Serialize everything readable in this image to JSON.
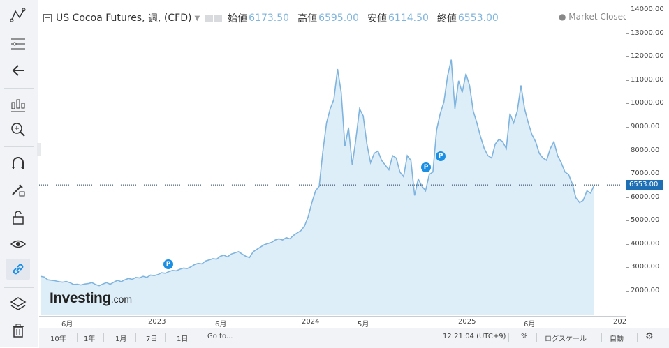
{
  "header": {
    "symbol": "US Cocoa Futures",
    "interval": "週",
    "type": "(CFD)",
    "open_label": "始値",
    "open": "6173.50",
    "high_label": "高値",
    "high": "6595.00",
    "low_label": "安値",
    "low": "6114.50",
    "close_label": "終値",
    "close": "6553.00",
    "market_status": "Market Closed"
  },
  "logo": {
    "brand": "Investing",
    "suffix": ".com"
  },
  "price_tag": "6553.00",
  "y_ticks": [
    "14000.00",
    "13000.00",
    "12000.00",
    "11000.00",
    "10000.00",
    "9000.00",
    "8000.00",
    "7000.00",
    "6000.00",
    "5000.00",
    "4000.00",
    "3000.00",
    "2000.00"
  ],
  "x_ticks": [
    "6月",
    "2023",
    "6月",
    "2024",
    "5月",
    "2025",
    "6月",
    "202"
  ],
  "bottom": {
    "ranges": [
      "10年",
      "1年",
      "1月",
      "7日",
      "1日"
    ],
    "goto": "Go to...",
    "time": "12:21:04 (UTC+9)",
    "percent": "%",
    "log": "ログスケール",
    "auto": "自動"
  },
  "chart_data": {
    "type": "area",
    "y_range": [
      1000,
      14200
    ],
    "color": "#7fb4de",
    "fill": "#deeef9",
    "last_value": 6553,
    "values": [
      2650,
      2620,
      2500,
      2480,
      2460,
      2420,
      2400,
      2430,
      2380,
      2300,
      2310,
      2280,
      2320,
      2340,
      2380,
      2300,
      2250,
      2320,
      2380,
      2310,
      2400,
      2480,
      2420,
      2500,
      2560,
      2520,
      2600,
      2580,
      2650,
      2600,
      2700,
      2680,
      2720,
      2800,
      2780,
      2850,
      2900,
      2880,
      2950,
      3000,
      2980,
      3050,
      3150,
      3200,
      3180,
      3300,
      3350,
      3400,
      3380,
      3500,
      3550,
      3480,
      3600,
      3650,
      3700,
      3600,
      3500,
      3450,
      3700,
      3800,
      3900,
      4000,
      4050,
      4100,
      4200,
      4250,
      4200,
      4300,
      4250,
      4400,
      4500,
      4600,
      4800,
      5200,
      5800,
      6300,
      6500,
      8000,
      9200,
      9800,
      10200,
      11500,
      10500,
      8200,
      9000,
      7400,
      8500,
      9800,
      9500,
      8300,
      7500,
      7900,
      8000,
      7600,
      7400,
      7200,
      7800,
      7700,
      7100,
      6900,
      7800,
      7600,
      6100,
      6800,
      6500,
      6300,
      7000,
      7100,
      8900,
      9600,
      10100,
      11200,
      11900,
      9800,
      11000,
      10500,
      11300,
      10800,
      9700,
      9200,
      8600,
      8100,
      7800,
      7700,
      8300,
      8500,
      8400,
      8100,
      9600,
      9200,
      9700,
      10800,
      9800,
      9200,
      8700,
      8400,
      7900,
      7700,
      7600,
      8100,
      8400,
      7800,
      7500,
      7100,
      7000,
      6600,
      6000,
      5800,
      5900,
      6300,
      6200,
      6553
    ]
  },
  "p_markers": [
    "P",
    "P",
    "P"
  ]
}
